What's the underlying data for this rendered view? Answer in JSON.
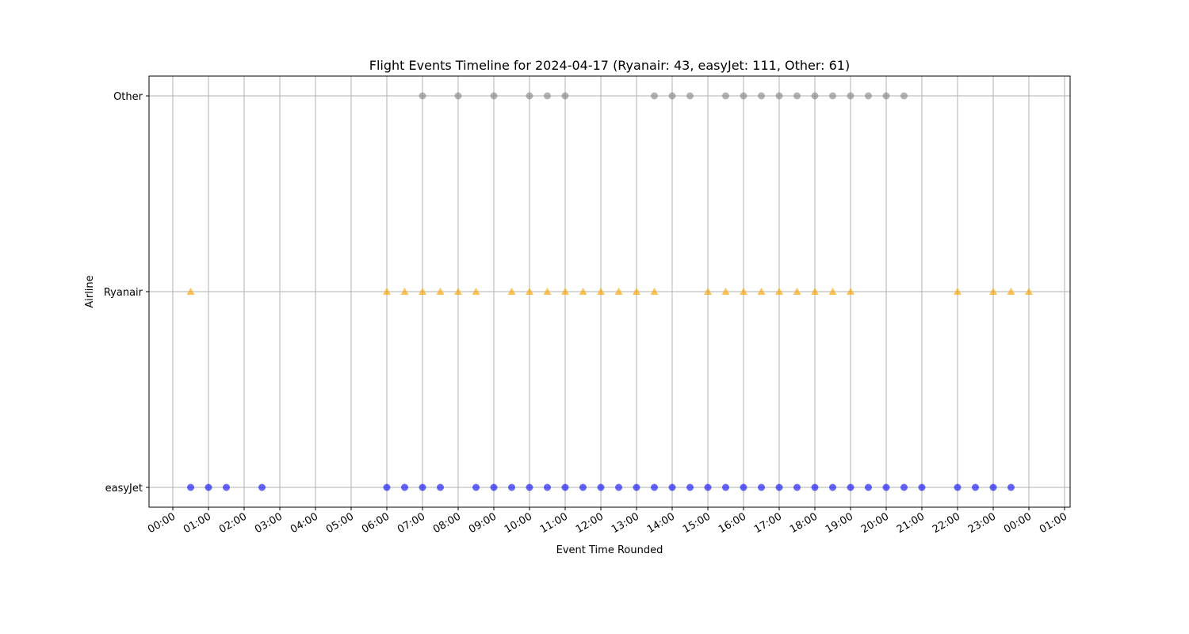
{
  "chart_data": {
    "type": "scatter",
    "title": "Flight Events Timeline for 2024-04-17 (Ryanair: 43, easyJet: 111, Other: 61)",
    "xlabel": "Event Time Rounded",
    "ylabel": "Airline",
    "grid": true,
    "xlim": [
      "2024-04-16 23:44",
      "2024-04-18 01:15"
    ],
    "x_ticks": [
      "00:00",
      "01:00",
      "02:00",
      "03:00",
      "04:00",
      "05:00",
      "06:00",
      "07:00",
      "08:00",
      "09:00",
      "10:00",
      "11:00",
      "12:00",
      "13:00",
      "14:00",
      "15:00",
      "16:00",
      "17:00",
      "18:00",
      "19:00",
      "20:00",
      "21:00",
      "22:00",
      "23:00",
      "00:00",
      "01:00"
    ],
    "y_categories": [
      "easyJet",
      "Ryanair",
      "Other"
    ],
    "series": [
      {
        "name": "easyJet",
        "marker": "circle",
        "color": "#0000ff",
        "times": [
          "00:30",
          "01:00",
          "01:30",
          "02:30",
          "06:00",
          "06:30",
          "07:00",
          "07:30",
          "08:30",
          "09:00",
          "09:30",
          "10:00",
          "10:30",
          "11:00",
          "11:30",
          "12:00",
          "12:30",
          "13:00",
          "13:30",
          "14:00",
          "14:30",
          "15:00",
          "15:30",
          "16:00",
          "16:30",
          "17:00",
          "17:30",
          "18:00",
          "18:30",
          "19:00",
          "19:30",
          "20:00",
          "20:30",
          "21:00",
          "22:00",
          "22:30",
          "23:00",
          "23:30"
        ]
      },
      {
        "name": "Ryanair",
        "marker": "triangle",
        "color": "#ffa500",
        "times": [
          "00:30",
          "06:00",
          "06:30",
          "07:00",
          "07:30",
          "08:00",
          "08:30",
          "09:30",
          "10:00",
          "10:30",
          "11:00",
          "11:30",
          "12:00",
          "12:30",
          "13:00",
          "13:30",
          "15:00",
          "15:30",
          "16:00",
          "16:30",
          "17:00",
          "17:30",
          "18:00",
          "18:30",
          "19:00",
          "22:00",
          "23:00",
          "23:30",
          "24:00"
        ]
      },
      {
        "name": "Other",
        "marker": "circle",
        "color": "#808080",
        "times": [
          "07:00",
          "08:00",
          "09:00",
          "10:00",
          "10:30",
          "11:00",
          "13:30",
          "14:00",
          "14:30",
          "15:30",
          "16:00",
          "16:30",
          "17:00",
          "17:30",
          "18:00",
          "18:30",
          "19:00",
          "19:30",
          "20:00",
          "20:30"
        ]
      }
    ]
  }
}
